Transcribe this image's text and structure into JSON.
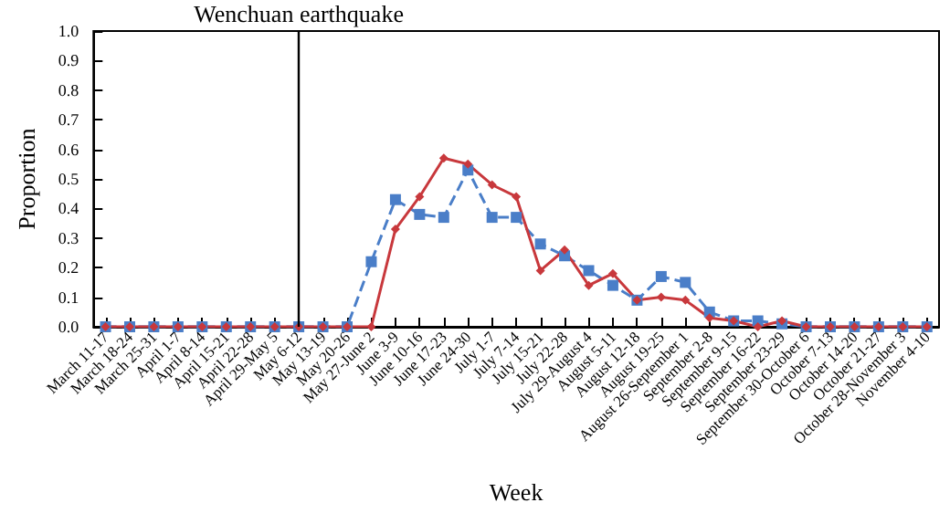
{
  "chart_data": {
    "type": "line",
    "xlabel": "Week",
    "ylabel": "Proportion",
    "categories": [
      "March 11-17",
      "March 18-24",
      "March 25-31",
      "April 1-7",
      "April 8-14",
      "April 15-21",
      "April 22-28",
      "April 29-May 5",
      "May 6-12",
      "May 13-19",
      "May 20-26",
      "May 27-June 2",
      "June 3-9",
      "June 10-16",
      "June 17-23",
      "June 24-30",
      "July 1-7",
      "July 7-14",
      "July 15-21",
      "July 22-28",
      "July 29-August 4",
      "August 5-11",
      "August 12-18",
      "August 19-25",
      "August 26-September 1",
      "September 2-8",
      "September 9-15",
      "September 16-22",
      "September 23-29",
      "September 30-October 6",
      "October 7-13",
      "October 14-20",
      "October 21-27",
      "October 28-November 3",
      "November 4-10"
    ],
    "series": [
      {
        "color": "#4a7ec8",
        "marker": "square",
        "line_style": "dashed",
        "values": [
          0,
          0,
          0,
          0,
          0,
          0,
          0,
          0,
          0,
          0,
          0,
          0.22,
          0.43,
          0.38,
          0.37,
          0.53,
          0.37,
          0.37,
          0.28,
          0.24,
          0.19,
          0.14,
          0.09,
          0.17,
          0.15,
          0.05,
          0.02,
          0.02,
          0.01,
          0,
          0,
          0,
          0,
          0,
          0
        ]
      },
      {
        "color": "#c8383c",
        "marker": "diamond",
        "line_style": "solid",
        "values": [
          0,
          0,
          0,
          0,
          0,
          0,
          0,
          0,
          0,
          0,
          0,
          0,
          0.33,
          0.44,
          0.57,
          0.55,
          0.48,
          0.44,
          0.19,
          0.26,
          0.14,
          0.18,
          0.09,
          0.1,
          0.09,
          0.03,
          0.02,
          0,
          0.02,
          0,
          0,
          0,
          0,
          0,
          0
        ]
      }
    ],
    "ylim": [
      0,
      1
    ],
    "yticks": [
      {
        "value": 0,
        "label": "0.0"
      },
      0.1,
      0.2,
      0.3,
      0.4,
      0.5,
      0.6,
      0.7,
      0.8,
      0.9,
      {
        "value": 1,
        "label": "1.0"
      }
    ],
    "ref_lines": [
      {
        "axis": "x",
        "value": "May 6-12",
        "label": "Wenchuan earthquake",
        "color": "#000000"
      }
    ],
    "grid": false
  }
}
